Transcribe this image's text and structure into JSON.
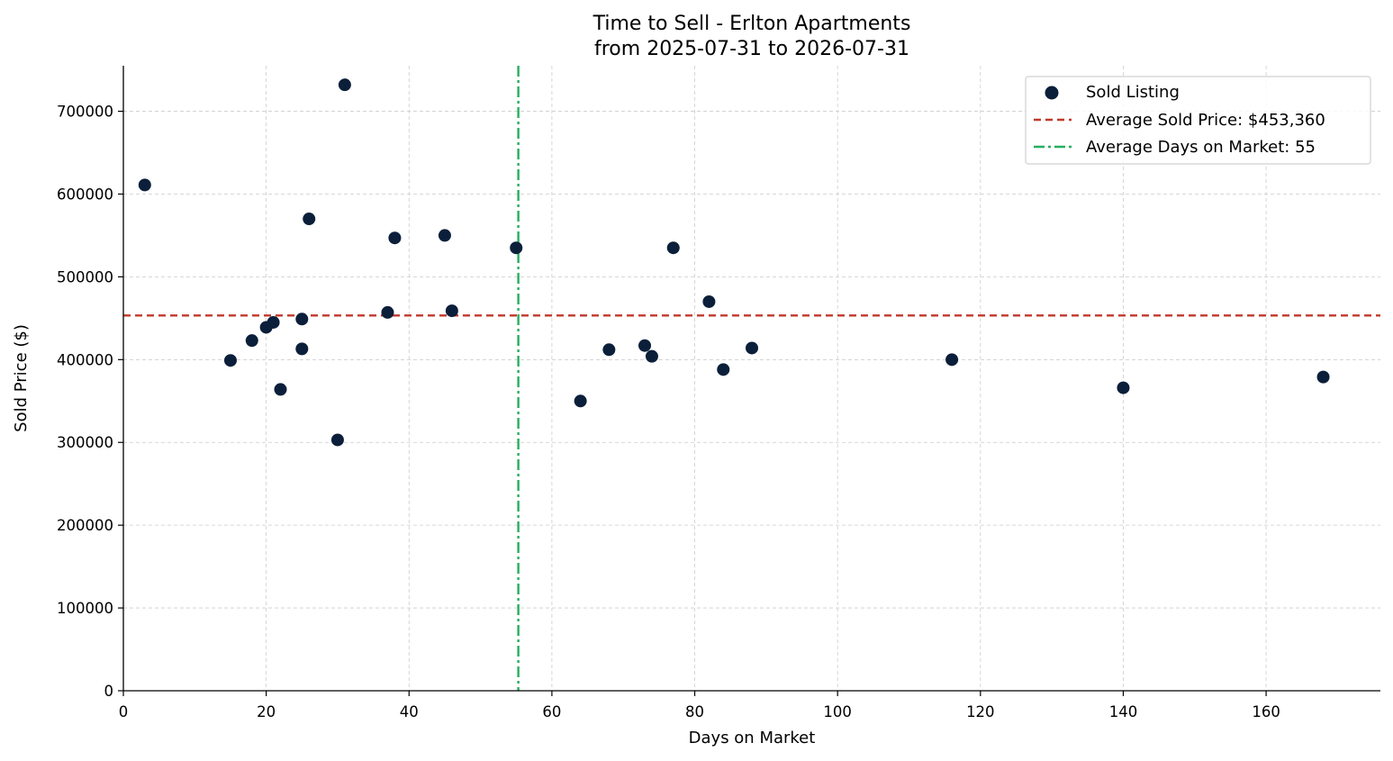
{
  "chart_data": {
    "type": "scatter",
    "title": "Time to Sell - Erlton Apartments",
    "subtitle": "from 2025-07-31 to 2026-07-31",
    "xlabel": "Days on Market",
    "ylabel": "Sold Price ($)",
    "xlim": [
      0,
      176
    ],
    "ylim": [
      0,
      755000
    ],
    "x_ticks": [
      0,
      20,
      40,
      60,
      80,
      100,
      120,
      140,
      160
    ],
    "y_ticks": [
      0,
      100000,
      200000,
      300000,
      400000,
      500000,
      600000,
      700000
    ],
    "x_tick_labels": [
      "0",
      "20",
      "40",
      "60",
      "80",
      "100",
      "120",
      "140",
      "160"
    ],
    "y_tick_labels": [
      "0",
      "100000",
      "200000",
      "300000",
      "400000",
      "500000",
      "600000",
      "700000"
    ],
    "grid": true,
    "legend_position": "top-right",
    "series": [
      {
        "name": "Sold Listing",
        "color": "#0b1f3a",
        "points": [
          {
            "x": 3,
            "y": 611000
          },
          {
            "x": 15,
            "y": 399000
          },
          {
            "x": 18,
            "y": 423000
          },
          {
            "x": 20,
            "y": 439000
          },
          {
            "x": 21,
            "y": 445000
          },
          {
            "x": 22,
            "y": 364000
          },
          {
            "x": 25,
            "y": 449000
          },
          {
            "x": 25,
            "y": 413000
          },
          {
            "x": 26,
            "y": 570000
          },
          {
            "x": 30,
            "y": 303000
          },
          {
            "x": 31,
            "y": 732000
          },
          {
            "x": 37,
            "y": 457000
          },
          {
            "x": 38,
            "y": 547000
          },
          {
            "x": 45,
            "y": 550000
          },
          {
            "x": 46,
            "y": 459000
          },
          {
            "x": 55,
            "y": 535000
          },
          {
            "x": 64,
            "y": 350000
          },
          {
            "x": 68,
            "y": 412000
          },
          {
            "x": 73,
            "y": 417000
          },
          {
            "x": 74,
            "y": 404000
          },
          {
            "x": 77,
            "y": 535000
          },
          {
            "x": 82,
            "y": 470000
          },
          {
            "x": 84,
            "y": 388000
          },
          {
            "x": 88,
            "y": 414000
          },
          {
            "x": 116,
            "y": 400000
          },
          {
            "x": 140,
            "y": 366000
          },
          {
            "x": 168,
            "y": 379000
          }
        ]
      }
    ],
    "reference_lines": [
      {
        "name": "Average Sold Price: $453,360",
        "orientation": "horizontal",
        "value": 453360,
        "color": "#c0392b",
        "style": "dashed"
      },
      {
        "name": "Average Days on Market: 55",
        "orientation": "vertical",
        "value": 55.3,
        "color": "#27ae60",
        "style": "dashdot"
      }
    ]
  }
}
